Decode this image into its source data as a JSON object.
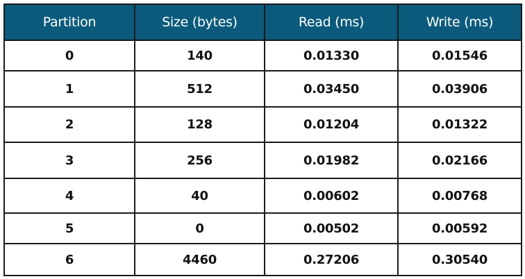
{
  "table": {
    "headers": [
      "Partition",
      "Size (bytes)",
      "Read (ms)",
      "Write (ms)"
    ],
    "rows": [
      [
        "0",
        "140",
        "0.01330",
        "0.01546"
      ],
      [
        "1",
        "512",
        "0.03450",
        "0.03906"
      ],
      [
        "2",
        "128",
        "0.01204",
        "0.01322"
      ],
      [
        "3",
        "256",
        "0.01982",
        "0.02166"
      ],
      [
        "4",
        "40",
        "0.00602",
        "0.00768"
      ],
      [
        "5",
        "0",
        "0.00502",
        "0.00592"
      ],
      [
        "6",
        "4460",
        "0.27206",
        "0.30540"
      ]
    ]
  },
  "colors": {
    "header_bg": "#0b5a7b",
    "header_text": "#ffffff",
    "border": "#1a1a1a"
  }
}
